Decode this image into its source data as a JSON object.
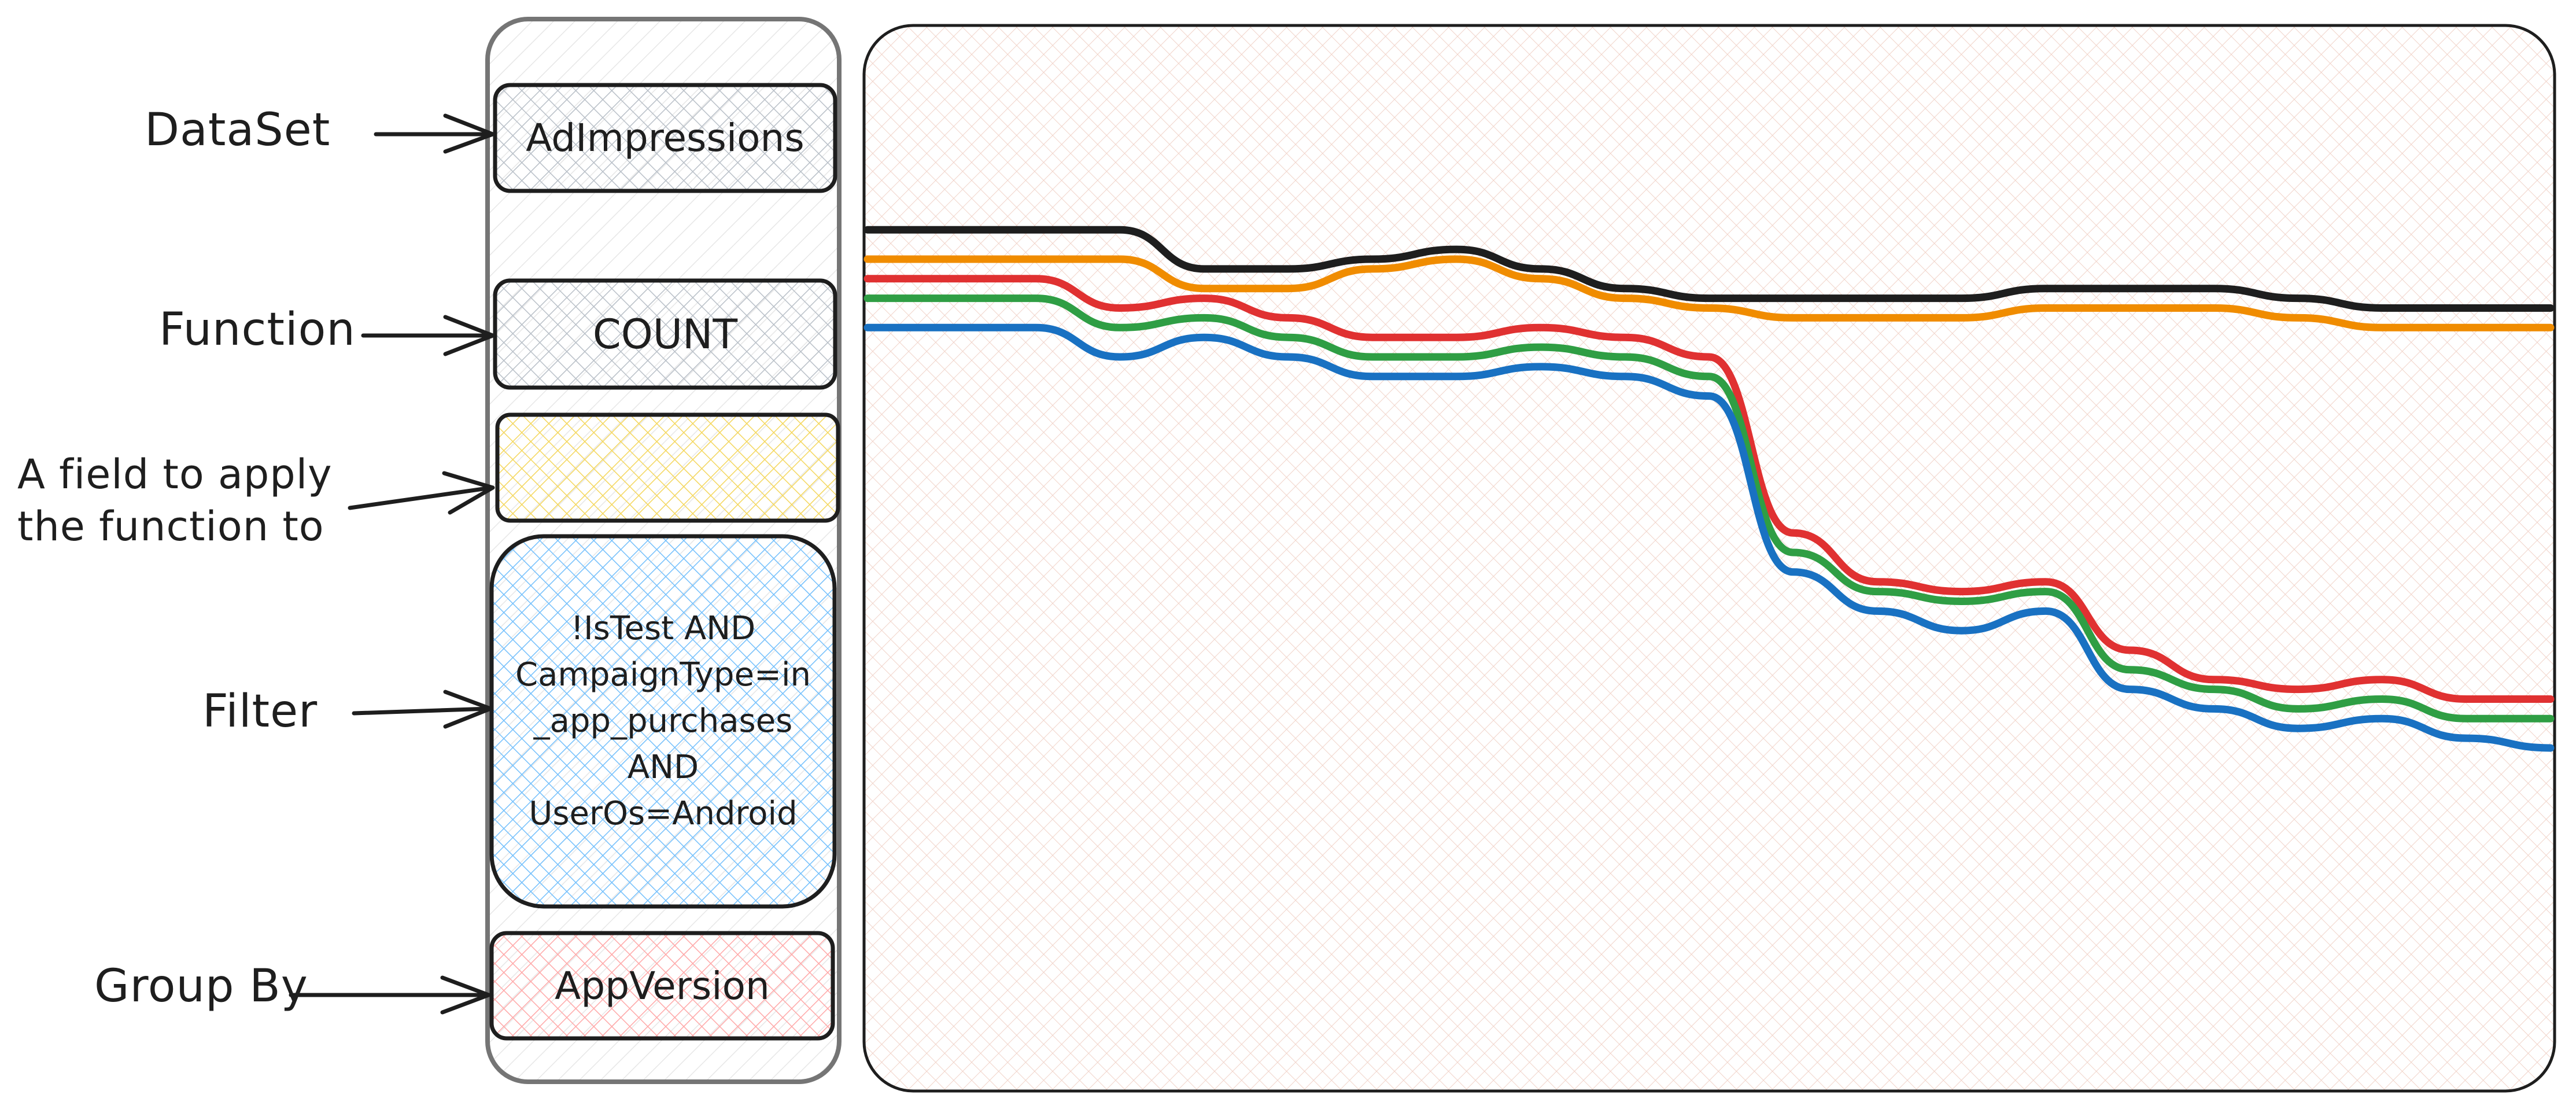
{
  "colors": {
    "stroke": "#1e1e1e",
    "dataset_fill": "#dde1e6",
    "function_fill": "#dde1e6",
    "field_fill": "#ffec99",
    "filter_fill": "#a5d8ff",
    "groupby_fill": "#ffc9c9",
    "panel_hatch": "#f3c9bd",
    "series_black": "#1e1e1e",
    "series_orange": "#f08c00",
    "series_red": "#e03131",
    "series_green": "#2f9e44",
    "series_blue": "#1971c2"
  },
  "labels": {
    "dataset": "DataSet",
    "function": "Function",
    "field_line1": "A field to apply",
    "field_line2": "the function to",
    "filter": "Filter",
    "group_by": "Group By"
  },
  "query": {
    "dataset_value": "AdImpressions",
    "function_value": "COUNT",
    "field_value": "",
    "filter_lines": [
      "!IsTest AND",
      "CampaignType=in",
      "_app_purchases",
      "AND",
      "UserOs=Android"
    ],
    "group_by_value": "AppVersion"
  },
  "chart_data": {
    "type": "line",
    "title": "",
    "xlabel": "",
    "ylabel": "",
    "x": [
      0,
      10,
      15,
      20,
      25,
      30,
      35,
      40,
      45,
      50,
      55,
      60,
      65,
      70,
      75,
      80,
      85,
      90,
      95,
      100
    ],
    "ylim": [
      0,
      100
    ],
    "series": [
      {
        "name": "black",
        "color": "#1e1e1e",
        "values": [
          83,
          83,
          83,
          79,
          79,
          80,
          81,
          79,
          77,
          76,
          76,
          76,
          76,
          77,
          77,
          77,
          76,
          75,
          75,
          75
        ]
      },
      {
        "name": "orange",
        "color": "#f08c00",
        "values": [
          80,
          80,
          80,
          77,
          77,
          79,
          80,
          78,
          76,
          75,
          74,
          74,
          74,
          75,
          75,
          75,
          74,
          73,
          73,
          73
        ]
      },
      {
        "name": "red",
        "color": "#e03131",
        "values": [
          78,
          78,
          75,
          76,
          74,
          72,
          72,
          73,
          72,
          70,
          52,
          47,
          46,
          47,
          40,
          37,
          36,
          37,
          35,
          35
        ]
      },
      {
        "name": "green",
        "color": "#2f9e44",
        "values": [
          76,
          76,
          73,
          74,
          72,
          70,
          70,
          71,
          70,
          68,
          50,
          46,
          45,
          46,
          38,
          36,
          34,
          35,
          33,
          33
        ]
      },
      {
        "name": "blue",
        "color": "#1971c2",
        "values": [
          73,
          73,
          70,
          72,
          70,
          68,
          68,
          69,
          68,
          66,
          48,
          44,
          42,
          44,
          36,
          34,
          32,
          33,
          31,
          30
        ]
      }
    ]
  }
}
